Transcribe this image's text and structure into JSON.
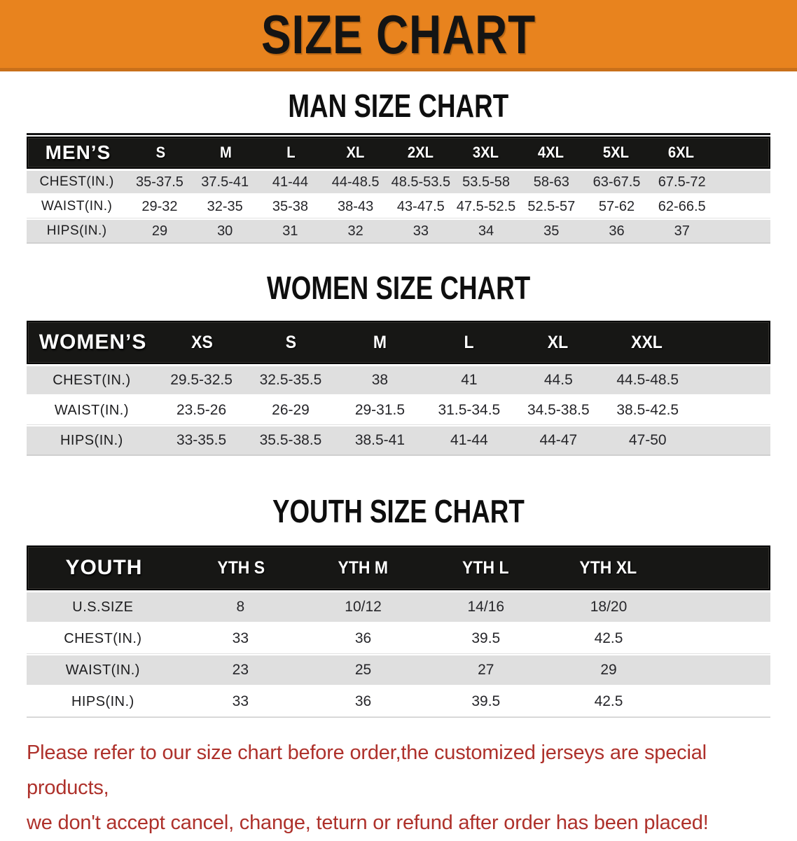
{
  "banner": {
    "title": "SIZE CHART",
    "bg_color": "#E8831E",
    "bg_edge_color": "#C9701A",
    "text_color": "#141414"
  },
  "colors": {
    "header_bar": "#171715",
    "row_alt": "#DFDFDF",
    "row_plain": "#FFFFFF",
    "disclaimer_red": "#AE312B"
  },
  "sections": [
    {
      "heading": "MAN SIZE CHART",
      "table": {
        "label": "MEN’S",
        "sizes": [
          "S",
          "M",
          "L",
          "XL",
          "2XL",
          "3XL",
          "4XL",
          "5XL",
          "6XL"
        ],
        "rows": [
          {
            "label": "CHEST(IN.)",
            "values": [
              "35-37.5",
              "37.5-41",
              "41-44",
              "44-48.5",
              "48.5-53.5",
              "53.5-58",
              "58-63",
              "63-67.5",
              "67.5-72"
            ]
          },
          {
            "label": "WAIST(IN.)",
            "values": [
              "29-32",
              "32-35",
              "35-38",
              "38-43",
              "43-47.5",
              "47.5-52.5",
              "52.5-57",
              "57-62",
              "62-66.5"
            ]
          },
          {
            "label": "HIPS(IN.)",
            "values": [
              "29",
              "30",
              "31",
              "32",
              "33",
              "34",
              "35",
              "36",
              "37"
            ]
          }
        ]
      }
    },
    {
      "heading": "WOMEN SIZE CHART",
      "table": {
        "label": "WOMEN’S",
        "sizes": [
          "XS",
          "S",
          "M",
          "L",
          "XL",
          "XXL"
        ],
        "rows": [
          {
            "label": "CHEST(IN.)",
            "values": [
              "29.5-32.5",
              "32.5-35.5",
              "38",
              "41",
              "44.5",
              "44.5-48.5"
            ]
          },
          {
            "label": "WAIST(IN.)",
            "values": [
              "23.5-26",
              "26-29",
              "29-31.5",
              "31.5-34.5",
              "34.5-38.5",
              "38.5-42.5"
            ]
          },
          {
            "label": "HIPS(IN.)",
            "values": [
              "33-35.5",
              "35.5-38.5",
              "38.5-41",
              "41-44",
              "44-47",
              "47-50"
            ]
          }
        ]
      }
    },
    {
      "heading": "YOUTH SIZE CHART",
      "table": {
        "label": "YOUTH",
        "sizes": [
          "YTH S",
          "YTH M",
          "YTH L",
          "YTH XL"
        ],
        "rows": [
          {
            "label": "U.S.SIZE",
            "values": [
              "8",
              "10/12",
              "14/16",
              "18/20"
            ]
          },
          {
            "label": "CHEST(IN.)",
            "values": [
              "33",
              "36",
              "39.5",
              "42.5"
            ]
          },
          {
            "label": "WAIST(IN.)",
            "values": [
              "23",
              "25",
              "27",
              "29"
            ]
          },
          {
            "label": "HIPS(IN.)",
            "values": [
              "33",
              "36",
              "39.5",
              "42.5"
            ]
          }
        ]
      }
    }
  ],
  "disclaimer": {
    "line1": "Please refer to our size chart before order,the customized jerseys are special products,",
    "line2": "we don't accept cancel, change, teturn or refund after order has been placed!"
  }
}
